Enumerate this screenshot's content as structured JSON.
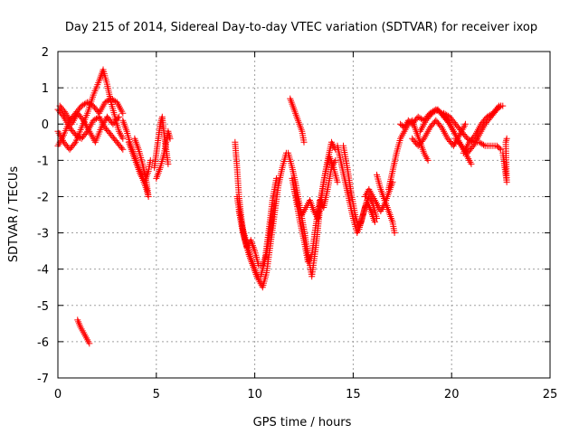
{
  "chart_data": {
    "type": "scatter",
    "title": "Day 215 of 2014, Sidereal Day-to-day VTEC variation (SDTVAR) for receiver ixop",
    "xlabel": "GPS time / hours",
    "ylabel": "SDTVAR / TECUs",
    "xlim": [
      0,
      25
    ],
    "ylim": [
      -7,
      2
    ],
    "xticks": [
      0,
      5,
      10,
      15,
      20,
      25
    ],
    "yticks": [
      -7,
      -6,
      -5,
      -4,
      -3,
      -2,
      -1,
      0,
      1,
      2
    ],
    "grid": true,
    "marker": "+",
    "series_color": "#ff0000",
    "series": [
      {
        "name": "SDTVAR",
        "tracks": [
          [
            [
              0.0,
              -0.6
            ],
            [
              0.3,
              -0.3
            ],
            [
              0.6,
              0.1
            ],
            [
              0.9,
              0.3
            ],
            [
              1.2,
              0.5
            ],
            [
              1.5,
              0.6
            ],
            [
              1.8,
              0.5
            ],
            [
              2.1,
              0.3
            ],
            [
              2.4,
              0.6
            ],
            [
              2.7,
              0.7
            ],
            [
              3.0,
              0.6
            ],
            [
              3.3,
              0.3
            ]
          ],
          [
            [
              0.0,
              0.4
            ],
            [
              0.3,
              0.2
            ],
            [
              0.6,
              -0.1
            ],
            [
              0.9,
              -0.3
            ],
            [
              1.2,
              -0.4
            ],
            [
              1.5,
              -0.2
            ],
            [
              1.8,
              0.1
            ],
            [
              2.1,
              0.2
            ],
            [
              2.4,
              -0.1
            ],
            [
              2.7,
              -0.3
            ],
            [
              3.0,
              -0.5
            ],
            [
              3.3,
              -0.7
            ]
          ],
          [
            [
              0.0,
              -0.2
            ],
            [
              0.3,
              -0.5
            ],
            [
              0.6,
              -0.7
            ],
            [
              0.9,
              -0.5
            ],
            [
              1.2,
              -0.1
            ],
            [
              1.5,
              0.3
            ],
            [
              1.8,
              0.8
            ],
            [
              2.1,
              1.2
            ],
            [
              2.3,
              1.5
            ],
            [
              2.5,
              1.1
            ],
            [
              2.7,
              0.6
            ],
            [
              2.9,
              0.2
            ],
            [
              3.1,
              -0.2
            ],
            [
              3.3,
              -0.4
            ]
          ],
          [
            [
              0.1,
              0.5
            ],
            [
              0.4,
              0.3
            ],
            [
              0.7,
              0.0
            ],
            [
              1.0,
              0.3
            ],
            [
              1.3,
              0.1
            ],
            [
              1.6,
              -0.2
            ],
            [
              1.9,
              -0.5
            ],
            [
              2.2,
              -0.1
            ],
            [
              2.5,
              0.2
            ],
            [
              2.8,
              0.0
            ],
            [
              3.1,
              0.2
            ]
          ],
          [
            [
              3.3,
              0.1
            ],
            [
              3.5,
              -0.2
            ],
            [
              3.7,
              -0.6
            ],
            [
              3.9,
              -0.9
            ],
            [
              4.1,
              -1.2
            ],
            [
              4.3,
              -1.5
            ],
            [
              4.5,
              -1.8
            ],
            [
              4.6,
              -2.0
            ],
            [
              4.5,
              -1.6
            ],
            [
              4.3,
              -1.1
            ],
            [
              4.1,
              -0.7
            ],
            [
              3.9,
              -0.4
            ]
          ],
          [
            [
              3.6,
              -0.5
            ],
            [
              3.8,
              -0.8
            ],
            [
              4.0,
              -1.1
            ],
            [
              4.2,
              -1.4
            ],
            [
              4.4,
              -1.6
            ],
            [
              4.6,
              -1.3
            ],
            [
              4.7,
              -1.0
            ]
          ],
          [
            [
              4.9,
              -1.2
            ],
            [
              5.0,
              -0.8
            ],
            [
              5.1,
              -0.4
            ],
            [
              5.2,
              0.0
            ],
            [
              5.3,
              0.2
            ],
            [
              5.4,
              -0.3
            ],
            [
              5.5,
              -0.7
            ],
            [
              5.6,
              -1.1
            ]
          ],
          [
            [
              5.0,
              -1.5
            ],
            [
              5.2,
              -1.2
            ],
            [
              5.4,
              -0.8
            ],
            [
              5.5,
              -0.5
            ],
            [
              5.6,
              -0.2
            ],
            [
              5.7,
              -0.4
            ]
          ],
          [
            [
              1.0,
              -5.4
            ],
            [
              1.15,
              -5.6
            ],
            [
              1.3,
              -5.75
            ],
            [
              1.45,
              -5.9
            ],
            [
              1.6,
              -6.05
            ]
          ],
          [
            [
              9.0,
              -0.5
            ],
            [
              9.1,
              -1.2
            ],
            [
              9.2,
              -2.0
            ],
            [
              9.3,
              -2.5
            ],
            [
              9.4,
              -2.9
            ],
            [
              9.6,
              -3.3
            ],
            [
              9.8,
              -3.7
            ],
            [
              10.0,
              -4.0
            ],
            [
              10.2,
              -4.3
            ],
            [
              10.4,
              -4.5
            ],
            [
              10.6,
              -4.1
            ],
            [
              10.8,
              -3.3
            ],
            [
              11.0,
              -2.5
            ],
            [
              11.2,
              -1.7
            ],
            [
              11.4,
              -1.2
            ],
            [
              11.6,
              -0.8
            ]
          ],
          [
            [
              9.1,
              -2.0
            ],
            [
              9.3,
              -2.7
            ],
            [
              9.5,
              -3.2
            ],
            [
              9.7,
              -3.6
            ],
            [
              9.9,
              -3.9
            ],
            [
              10.1,
              -4.2
            ],
            [
              10.3,
              -4.2
            ],
            [
              10.5,
              -3.8
            ],
            [
              10.7,
              -3.0
            ],
            [
              10.9,
              -2.1
            ],
            [
              11.1,
              -1.5
            ]
          ],
          [
            [
              9.2,
              -2.4
            ],
            [
              9.4,
              -3.0
            ],
            [
              9.6,
              -3.4
            ],
            [
              9.8,
              -3.2
            ],
            [
              10.0,
              -3.5
            ],
            [
              10.2,
              -3.9
            ],
            [
              10.4,
              -3.9
            ],
            [
              10.6,
              -3.6
            ],
            [
              10.8,
              -2.9
            ],
            [
              11.0,
              -2.2
            ]
          ],
          [
            [
              11.8,
              0.7
            ],
            [
              12.0,
              0.4
            ],
            [
              12.2,
              0.1
            ],
            [
              12.4,
              -0.2
            ],
            [
              12.5,
              -0.5
            ]
          ],
          [
            [
              11.7,
              -0.8
            ],
            [
              11.9,
              -1.2
            ],
            [
              12.1,
              -1.7
            ],
            [
              12.3,
              -2.3
            ],
            [
              12.5,
              -2.9
            ],
            [
              12.7,
              -3.6
            ],
            [
              12.9,
              -4.2
            ],
            [
              13.1,
              -3.4
            ],
            [
              13.3,
              -2.4
            ],
            [
              13.5,
              -1.6
            ],
            [
              13.7,
              -1.0
            ],
            [
              13.9,
              -0.5
            ],
            [
              14.1,
              -0.7
            ]
          ],
          [
            [
              11.9,
              -1.5
            ],
            [
              12.1,
              -2.1
            ],
            [
              12.3,
              -2.7
            ],
            [
              12.5,
              -3.2
            ],
            [
              12.7,
              -3.8
            ],
            [
              12.9,
              -3.6
            ],
            [
              13.1,
              -2.8
            ],
            [
              13.3,
              -2.1
            ],
            [
              13.5,
              -2.3
            ],
            [
              13.7,
              -1.8
            ],
            [
              13.9,
              -1.2
            ],
            [
              14.1,
              -1.0
            ]
          ],
          [
            [
              12.0,
              -1.8
            ],
            [
              12.2,
              -2.2
            ],
            [
              12.4,
              -2.5
            ],
            [
              12.6,
              -2.3
            ],
            [
              12.8,
              -2.1
            ],
            [
              13.0,
              -2.4
            ],
            [
              13.2,
              -2.6
            ],
            [
              13.4,
              -1.9
            ],
            [
              13.6,
              -1.3
            ],
            [
              13.8,
              -0.9
            ],
            [
              14.0,
              -1.2
            ],
            [
              14.2,
              -1.6
            ]
          ],
          [
            [
              14.2,
              -0.6
            ],
            [
              14.4,
              -1.1
            ],
            [
              14.6,
              -1.6
            ],
            [
              14.8,
              -2.1
            ],
            [
              15.0,
              -2.6
            ],
            [
              15.2,
              -3.0
            ],
            [
              15.4,
              -2.7
            ],
            [
              15.6,
              -2.3
            ],
            [
              15.8,
              -2.0
            ],
            [
              16.0,
              -2.2
            ],
            [
              16.2,
              -2.6
            ]
          ],
          [
            [
              14.5,
              -0.6
            ],
            [
              14.7,
              -1.2
            ],
            [
              14.9,
              -1.9
            ],
            [
              15.1,
              -2.5
            ],
            [
              15.3,
              -2.9
            ],
            [
              15.5,
              -2.5
            ],
            [
              15.7,
              -2.1
            ],
            [
              15.9,
              -2.4
            ],
            [
              16.1,
              -2.7
            ]
          ],
          [
            [
              15.6,
              -2.0
            ],
            [
              15.8,
              -1.8
            ],
            [
              16.0,
              -2.0
            ],
            [
              16.2,
              -2.2
            ],
            [
              16.4,
              -2.4
            ],
            [
              16.6,
              -2.2
            ],
            [
              16.8,
              -1.9
            ],
            [
              17.0,
              -1.6
            ]
          ],
          [
            [
              16.2,
              -1.4
            ],
            [
              16.4,
              -1.8
            ],
            [
              16.6,
              -2.1
            ],
            [
              16.8,
              -2.4
            ],
            [
              17.0,
              -2.7
            ],
            [
              17.1,
              -3.0
            ]
          ],
          [
            [
              16.8,
              -1.8
            ],
            [
              17.0,
              -1.3
            ],
            [
              17.2,
              -0.8
            ],
            [
              17.4,
              -0.4
            ],
            [
              17.6,
              -0.2
            ],
            [
              17.8,
              0.0
            ],
            [
              18.0,
              0.1
            ],
            [
              18.2,
              -0.2
            ],
            [
              18.4,
              -0.5
            ],
            [
              18.6,
              -0.8
            ],
            [
              18.8,
              -1.0
            ]
          ],
          [
            [
              17.4,
              0.0
            ],
            [
              17.6,
              -0.1
            ],
            [
              17.8,
              0.1
            ],
            [
              18.0,
              0.0
            ],
            [
              18.3,
              0.2
            ],
            [
              18.6,
              0.1
            ],
            [
              18.9,
              0.3
            ],
            [
              19.2,
              0.4
            ],
            [
              19.5,
              0.3
            ],
            [
              19.8,
              0.1
            ],
            [
              20.1,
              -0.2
            ]
          ],
          [
            [
              18.0,
              -0.4
            ],
            [
              18.3,
              -0.6
            ],
            [
              18.6,
              -0.4
            ],
            [
              18.9,
              -0.1
            ],
            [
              19.2,
              0.1
            ],
            [
              19.5,
              -0.1
            ],
            [
              19.8,
              -0.4
            ],
            [
              20.1,
              -0.6
            ],
            [
              20.4,
              -0.3
            ],
            [
              20.7,
              0.0
            ]
          ],
          [
            [
              18.4,
              -0.2
            ],
            [
              18.7,
              0.1
            ],
            [
              19.0,
              0.3
            ],
            [
              19.3,
              0.4
            ],
            [
              19.6,
              0.2
            ],
            [
              19.9,
              0.0
            ],
            [
              20.2,
              -0.3
            ],
            [
              20.5,
              -0.6
            ],
            [
              20.8,
              -0.9
            ],
            [
              21.0,
              -1.1
            ]
          ],
          [
            [
              19.6,
              0.3
            ],
            [
              19.9,
              0.2
            ],
            [
              20.2,
              0.0
            ],
            [
              20.5,
              -0.2
            ],
            [
              20.8,
              -0.4
            ],
            [
              21.1,
              -0.5
            ],
            [
              21.4,
              -0.5
            ],
            [
              21.7,
              -0.6
            ],
            [
              22.0,
              -0.6
            ],
            [
              22.3,
              -0.6
            ],
            [
              22.5,
              -0.7
            ]
          ],
          [
            [
              20.2,
              -0.4
            ],
            [
              20.5,
              -0.6
            ],
            [
              20.8,
              -0.8
            ],
            [
              21.1,
              -0.6
            ],
            [
              21.4,
              -0.3
            ],
            [
              21.7,
              0.0
            ],
            [
              22.0,
              0.2
            ],
            [
              22.3,
              0.4
            ],
            [
              22.5,
              0.5
            ]
          ],
          [
            [
              20.6,
              -0.8
            ],
            [
              20.9,
              -0.5
            ],
            [
              21.2,
              -0.3
            ],
            [
              21.5,
              0.0
            ],
            [
              21.8,
              0.2
            ],
            [
              22.1,
              0.3
            ],
            [
              22.4,
              0.5
            ],
            [
              22.6,
              0.5
            ]
          ],
          [
            [
              22.6,
              -0.8
            ],
            [
              22.7,
              -1.2
            ],
            [
              22.8,
              -1.6
            ],
            [
              22.75,
              -0.5
            ],
            [
              22.8,
              -0.4
            ]
          ]
        ]
      }
    ]
  }
}
